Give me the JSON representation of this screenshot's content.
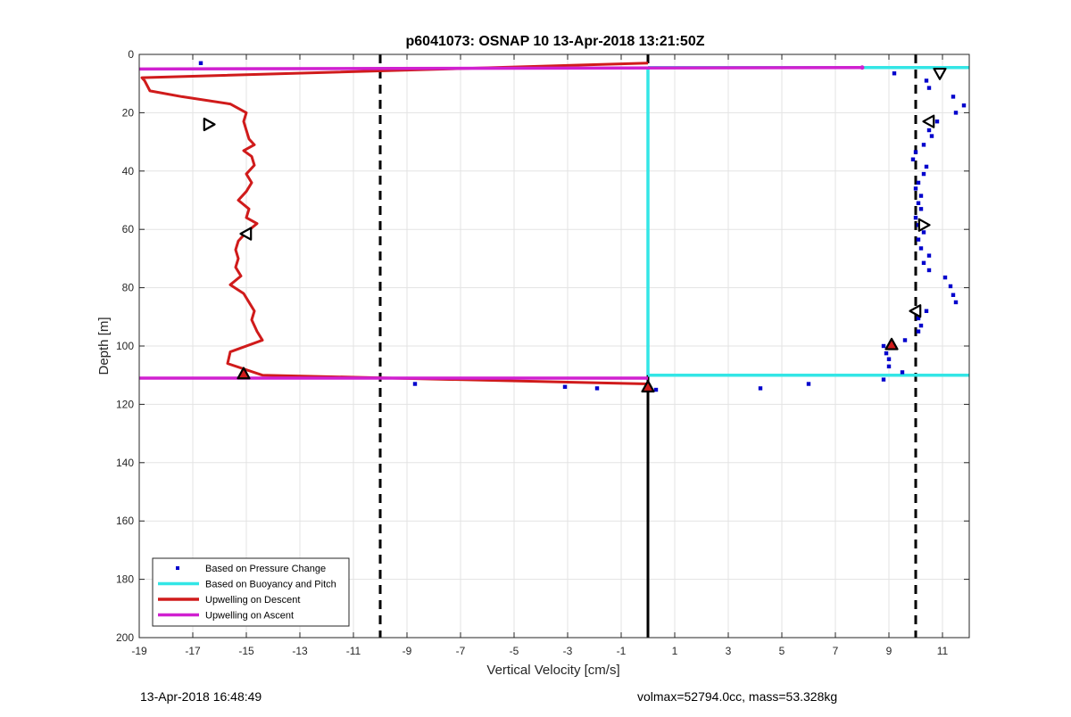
{
  "chart_data": {
    "type": "line",
    "title": "p6041073: OSNAP 10 13-Apr-2018 13:21:50Z",
    "xlabel": "Vertical Velocity [cm/s]",
    "ylabel": "Depth [m]",
    "xlim": [
      -19,
      12
    ],
    "ylim": [
      0,
      200
    ],
    "y_reversed": true,
    "grid": true,
    "xticks": [
      -19,
      -17,
      -15,
      -13,
      -11,
      -9,
      -7,
      -5,
      -3,
      -1,
      1,
      3,
      5,
      7,
      9,
      11
    ],
    "yticks": [
      0,
      20,
      40,
      60,
      80,
      100,
      120,
      140,
      160,
      180,
      200
    ],
    "legend_position": "bottom-left",
    "legend": [
      {
        "label": "Based on Pressure Change",
        "color": "#0000cc",
        "style": "dot"
      },
      {
        "label": "Based on Buoyancy and Pitch",
        "color": "#33e6e6",
        "style": "line"
      },
      {
        "label": "Upwelling on Descent",
        "color": "#d01b1b",
        "style": "line"
      },
      {
        "label": "Upwelling on Ascent",
        "color": "#d020d0",
        "style": "line"
      }
    ],
    "reference_lines": {
      "dashed_x": [
        -10,
        10
      ],
      "solid_x": 0,
      "solid_from_depth": 111,
      "color": "#000000"
    },
    "series": [
      {
        "name": "Based on Pressure Change",
        "kind": "scatter",
        "color": "#0000cc",
        "points": [
          [
            -16.7,
            3
          ],
          [
            9.2,
            6.5
          ],
          [
            10.4,
            9
          ],
          [
            10.5,
            11.5
          ],
          [
            11.4,
            14.5
          ],
          [
            11.8,
            17.5
          ],
          [
            11.5,
            20
          ],
          [
            10.8,
            23
          ],
          [
            10.5,
            26
          ],
          [
            10.6,
            28
          ],
          [
            10.3,
            31
          ],
          [
            10.0,
            33.5
          ],
          [
            9.9,
            36
          ],
          [
            10.4,
            38.5
          ],
          [
            10.3,
            41
          ],
          [
            10.1,
            44
          ],
          [
            10.0,
            46
          ],
          [
            10.2,
            48.5
          ],
          [
            10.1,
            51
          ],
          [
            10.2,
            53
          ],
          [
            10.0,
            56
          ],
          [
            10.1,
            58.5
          ],
          [
            10.3,
            61
          ],
          [
            10.1,
            63.5
          ],
          [
            10.2,
            66.5
          ],
          [
            10.5,
            69
          ],
          [
            10.3,
            71.5
          ],
          [
            10.5,
            74
          ],
          [
            11.1,
            76.5
          ],
          [
            11.3,
            79.5
          ],
          [
            11.4,
            82.5
          ],
          [
            11.5,
            85
          ],
          [
            10.4,
            88
          ],
          [
            10.1,
            90.5
          ],
          [
            10.2,
            93
          ],
          [
            10.1,
            95
          ],
          [
            9.6,
            98
          ],
          [
            8.8,
            100
          ],
          [
            8.9,
            102.5
          ],
          [
            9.0,
            104.5
          ],
          [
            9.0,
            107
          ],
          [
            9.5,
            109
          ],
          [
            8.8,
            111.5
          ],
          [
            -8.7,
            113
          ],
          [
            -3.1,
            114
          ],
          [
            -1.9,
            114.5
          ],
          [
            0.3,
            115
          ],
          [
            4.2,
            114.5
          ],
          [
            6.0,
            113
          ]
        ]
      },
      {
        "name": "Based on Buoyancy and Pitch",
        "kind": "line",
        "color": "#33e6e6",
        "segments": [
          [
            [
              0,
              4.5
            ],
            [
              12,
              4.5
            ]
          ],
          [
            [
              0,
              4.5
            ],
            [
              0,
              110
            ]
          ],
          [
            [
              0,
              110
            ],
            [
              12,
              110
            ]
          ]
        ]
      },
      {
        "name": "Upwelling on Descent",
        "kind": "line",
        "color": "#d01b1b",
        "points": [
          [
            0,
            3
          ],
          [
            -18.9,
            8
          ],
          [
            -18.8,
            9
          ],
          [
            -18.6,
            12.5
          ],
          [
            -17.4,
            14.5
          ],
          [
            -15.6,
            17
          ],
          [
            -15.0,
            20
          ],
          [
            -15.1,
            23
          ],
          [
            -15.0,
            26
          ],
          [
            -14.9,
            29
          ],
          [
            -14.7,
            31
          ],
          [
            -15.1,
            33
          ],
          [
            -14.8,
            35
          ],
          [
            -14.7,
            38
          ],
          [
            -15.0,
            41
          ],
          [
            -14.8,
            44
          ],
          [
            -15.0,
            47
          ],
          [
            -15.3,
            50
          ],
          [
            -14.9,
            53
          ],
          [
            -15.0,
            56
          ],
          [
            -14.6,
            58
          ],
          [
            -15.0,
            61
          ],
          [
            -15.3,
            64
          ],
          [
            -15.4,
            67
          ],
          [
            -15.3,
            70
          ],
          [
            -15.4,
            73
          ],
          [
            -15.2,
            76
          ],
          [
            -15.6,
            79
          ],
          [
            -15.1,
            82
          ],
          [
            -14.9,
            85
          ],
          [
            -14.7,
            88
          ],
          [
            -14.8,
            91
          ],
          [
            -14.6,
            95
          ],
          [
            -14.4,
            98
          ],
          [
            -15.6,
            102
          ],
          [
            -15.7,
            106
          ],
          [
            -14.4,
            110
          ],
          [
            0,
            113
          ]
        ]
      },
      {
        "name": "Upwelling on Ascent",
        "kind": "line",
        "color": "#d020d0",
        "segments": [
          [
            [
              -19,
              5
            ],
            [
              8,
              4.5
            ]
          ],
          [
            [
              -19,
              111
            ],
            [
              0,
              111
            ]
          ]
        ]
      }
    ],
    "markers": [
      {
        "shape": "triangle-right",
        "x": -16.4,
        "y": 24,
        "fill": "#ffffff"
      },
      {
        "shape": "triangle-left",
        "x": -15.0,
        "y": 61.5,
        "fill": "#ffffff"
      },
      {
        "shape": "triangle-up",
        "x": -15.1,
        "y": 109.5,
        "fill": "#d01b1b"
      },
      {
        "shape": "triangle-up",
        "x": 0,
        "y": 114,
        "fill": "#d01b1b"
      },
      {
        "shape": "triangle-down",
        "x": 10.9,
        "y": 6.5,
        "fill": "#ffffff"
      },
      {
        "shape": "triangle-left",
        "x": 10.5,
        "y": 23,
        "fill": "#ffffff"
      },
      {
        "shape": "triangle-right",
        "x": 10.3,
        "y": 58.5,
        "fill": "#ffffff"
      },
      {
        "shape": "triangle-left",
        "x": 10.0,
        "y": 88,
        "fill": "#ffffff"
      },
      {
        "shape": "triangle-up",
        "x": 9.1,
        "y": 99.5,
        "fill": "#d01b1b"
      }
    ]
  },
  "footer": {
    "timestamp": "13-Apr-2018 16:48:49",
    "info": "volmax=52794.0cc, mass=53.328kg"
  }
}
